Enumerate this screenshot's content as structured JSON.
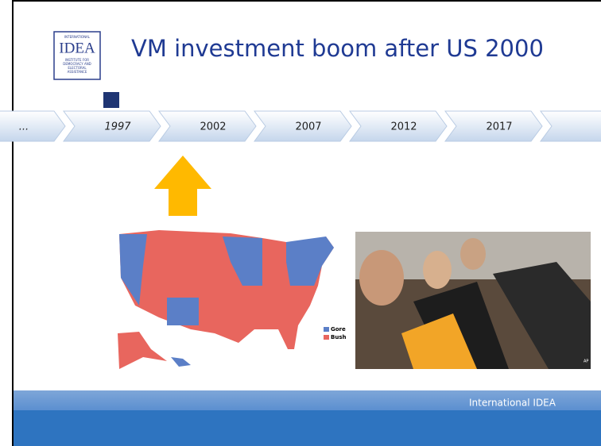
{
  "header": {
    "title": "VM investment boom after US 2000",
    "logo": {
      "top": "INTERNATIONAL",
      "name": "IDEA",
      "bottom": [
        "INSTITUTE FOR",
        "DEMOCRACY AND",
        "ELECTORAL",
        "ASSISTANCE"
      ]
    }
  },
  "timeline": {
    "labels": [
      "...",
      "1997",
      "2002",
      "2007",
      "2012",
      "2017"
    ]
  },
  "map": {
    "legend": [
      "Gore",
      "Bush"
    ]
  },
  "photo": {
    "credit": "AP"
  },
  "footer": {
    "text": "International IDEA"
  }
}
